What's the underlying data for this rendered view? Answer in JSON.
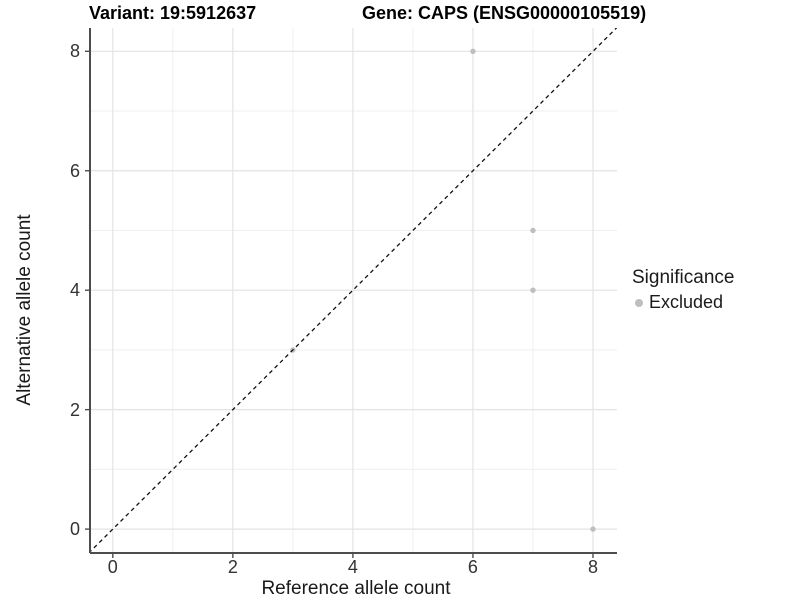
{
  "chart_data": {
    "type": "scatter",
    "title_left": "Variant: 19:5912637",
    "title_right": "Gene: CAPS (ENSG00000105519)",
    "xlabel": "Reference allele count",
    "ylabel": "Alternative allele count",
    "series": [
      {
        "name": "Excluded",
        "points": [
          {
            "x": 3,
            "y": 3
          },
          {
            "x": 6,
            "y": 8
          },
          {
            "x": 7,
            "y": 5
          },
          {
            "x": 7,
            "y": 4
          },
          {
            "x": 8,
            "y": 0
          }
        ]
      }
    ],
    "xlim": [
      -0.38,
      8.4
    ],
    "ylim": [
      -0.4,
      8.39
    ],
    "x_major_ticks": [
      0,
      2,
      4,
      6,
      8
    ],
    "y_major_ticks": [
      0,
      2,
      4,
      6,
      8
    ],
    "x_minor_gridlines": [
      1,
      3,
      5,
      7
    ],
    "y_minor_gridlines": [
      1,
      3,
      5,
      7
    ],
    "grid": "on",
    "identity_line": {
      "slope": 1,
      "intercept": 0,
      "style": "dashed"
    },
    "legend": {
      "position": "right",
      "title": "Significance",
      "items": [
        {
          "label": "Excluded",
          "color": "#BEBEBE"
        }
      ]
    },
    "colors": {
      "point": "#BEBEBE",
      "grid_major": "#E3E3E3",
      "grid_minor": "#EFEFEF",
      "axis_line": "#4D4D4D",
      "identity_line": "#111111",
      "background": "#FFFFFF"
    }
  }
}
